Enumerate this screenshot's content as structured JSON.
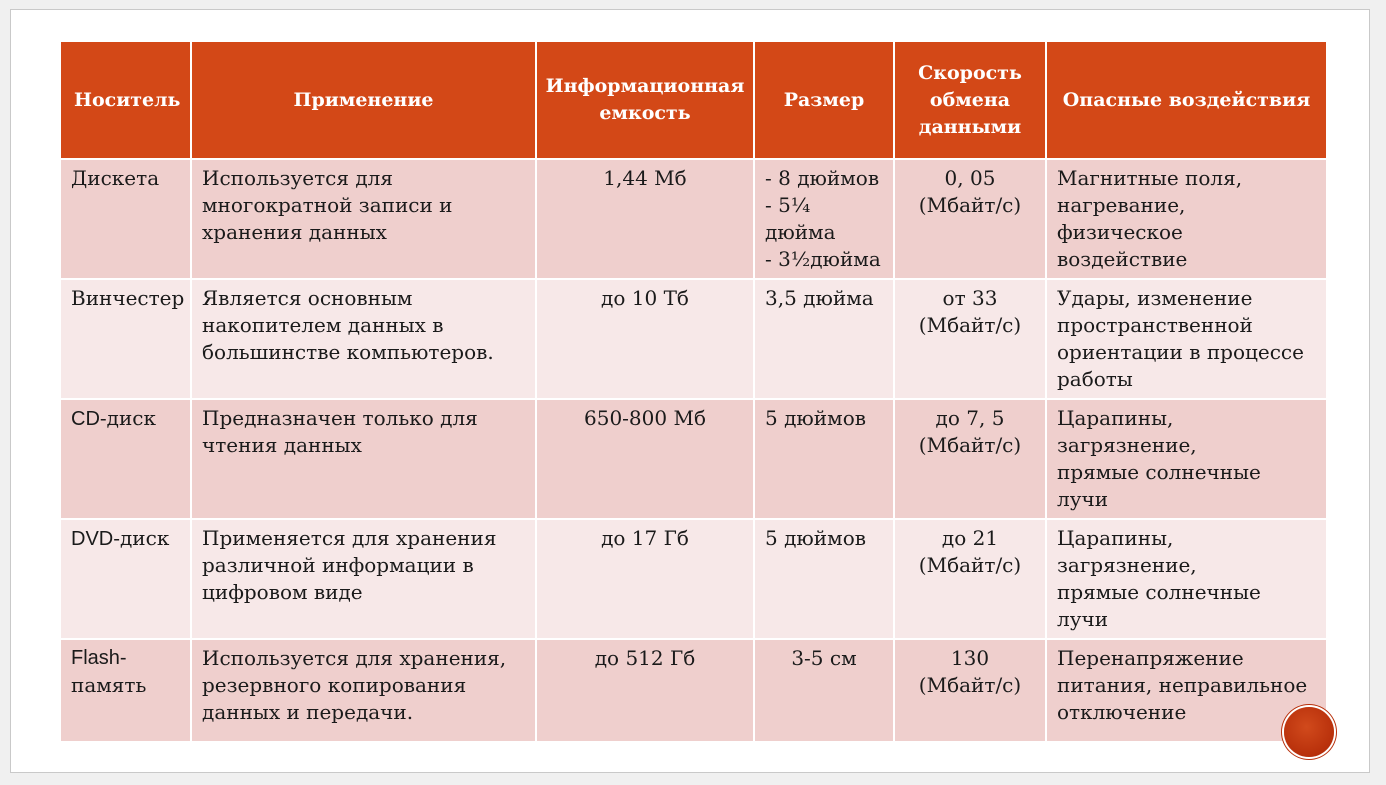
{
  "table": {
    "headers": [
      "Носитель",
      "Применение",
      "Информационная емкость",
      "Размер",
      "Скорость обмена данными",
      "Опасные воздействия"
    ],
    "rows": [
      {
        "carrier": [
          "Дискета"
        ],
        "usage": [
          "Используется для",
          "многократной записи и",
          "хранения данных"
        ],
        "capacity": [
          "1,44 Мб"
        ],
        "size": [
          "- 8 дюймов",
          "- 5¼ дюйма",
          "- 3½дюйма"
        ],
        "speed": [
          "0, 05",
          "(Мбайт/с)"
        ],
        "hazards": [
          "Магнитные поля,",
          "нагревание, физическое",
          "воздействие"
        ]
      },
      {
        "carrier": [
          "Винчестер"
        ],
        "usage": [
          "Является основным",
          "накопителем данных в",
          "большинстве компьютеров."
        ],
        "capacity": [
          "до 10 Тб"
        ],
        "size": [
          "3,5 дюйма"
        ],
        "speed": [
          "от 33",
          "(Мбайт/с)"
        ],
        "hazards": [
          "Удары, изменение",
          "пространственной",
          "ориентации в процессе",
          "работы"
        ]
      },
      {
        "carrier_latin": "CD",
        "carrier_rest": "-диск",
        "usage": [
          "Предназначен только для",
          "чтения данных"
        ],
        "capacity": [
          "650-800 Мб"
        ],
        "size": [
          "5 дюймов"
        ],
        "speed": [
          "до 7, 5",
          "(Мбайт/с)"
        ],
        "hazards": [
          "Царапины, загрязнение,",
          "прямые солнечные лучи"
        ]
      },
      {
        "carrier_latin": "DVD",
        "carrier_rest": "-диск",
        "usage": [
          "Применяется для хранения",
          "различной информации в",
          "цифровом виде"
        ],
        "capacity": [
          "до 17 Гб"
        ],
        "size": [
          "5 дюймов"
        ],
        "speed": [
          "до 21",
          "(Мбайт/с)"
        ],
        "hazards": [
          "Царапины, загрязнение,",
          "прямые солнечные лучи"
        ]
      },
      {
        "carrier_latin": "Flash-",
        "carrier_rest": "память",
        "usage": [
          "Используется для хранения,",
          "резервного копирования",
          "данных и передачи."
        ],
        "capacity": [
          "до 512 Гб"
        ],
        "size": [
          "3-5 см"
        ],
        "speed": [
          "130",
          "(Мбайт/с)"
        ],
        "hazards": [
          "Перенапряжение",
          "питания, неправильное",
          "отключение"
        ]
      }
    ]
  },
  "colors": {
    "header_bg": "#d34817",
    "row_odd_bg": "#efcfcd",
    "row_even_bg": "#f7e8e8",
    "nav_button": "#b8300b"
  },
  "nav": {
    "icon": "circle-nav-icon"
  }
}
